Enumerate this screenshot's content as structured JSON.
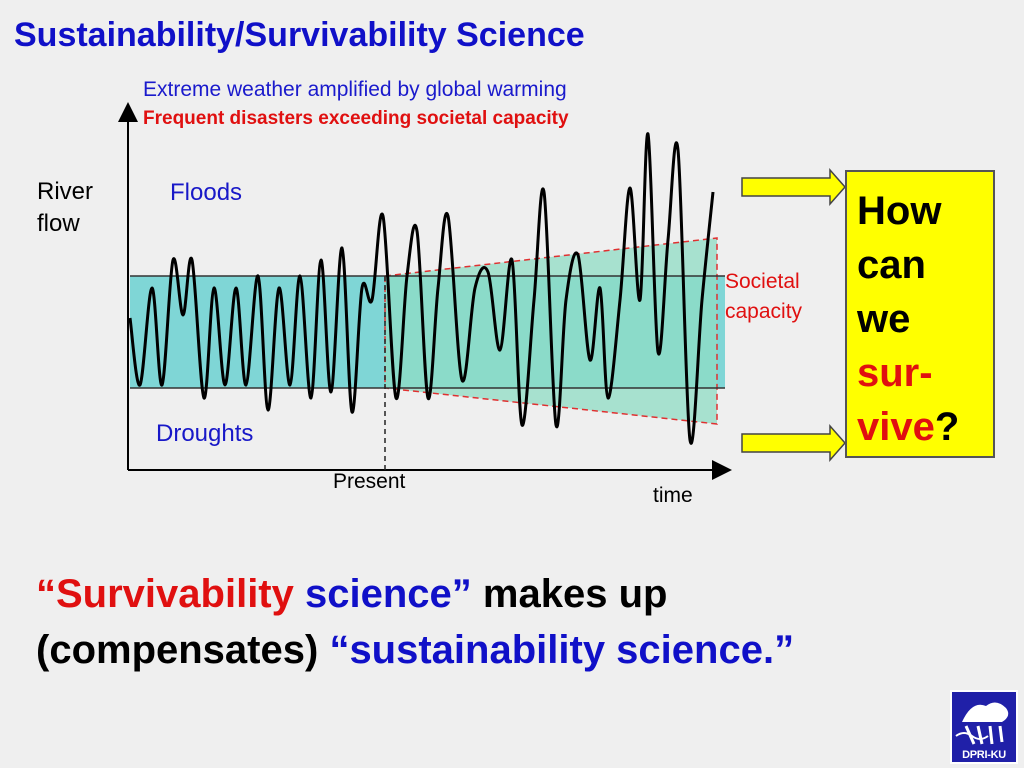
{
  "title": "Sustainability/Survivability Science",
  "diagram": {
    "header_line1": "Extreme weather amplified by global warming",
    "header_line2": "Frequent disasters exceeding societal capacity",
    "y_label": "River flow",
    "x_label": "time",
    "floods_label": "Floods",
    "droughts_label": "Droughts",
    "present_label": "Present",
    "capacity_label": "Societal capacity"
  },
  "question_box": {
    "lines": [
      "How",
      "can",
      "we"
    ],
    "highlight1": "sur-",
    "highlight2": "vive",
    "suffix": "?"
  },
  "bottom_text": {
    "q_open": "“",
    "word_survivability": "Survivability",
    "word_science": "science”",
    "part_makes_up": "makes up",
    "part_compensates": "(compensates)",
    "part_sustainability": "“sustainability science.”"
  },
  "logo": {
    "label": "DPRI-KU"
  },
  "colors": {
    "title_blue": "#1010c8",
    "accent_red": "#e01010",
    "box_yellow": "#ffff00",
    "band_current": "#7fd6d6",
    "band_future": "#a8e2cf"
  }
}
